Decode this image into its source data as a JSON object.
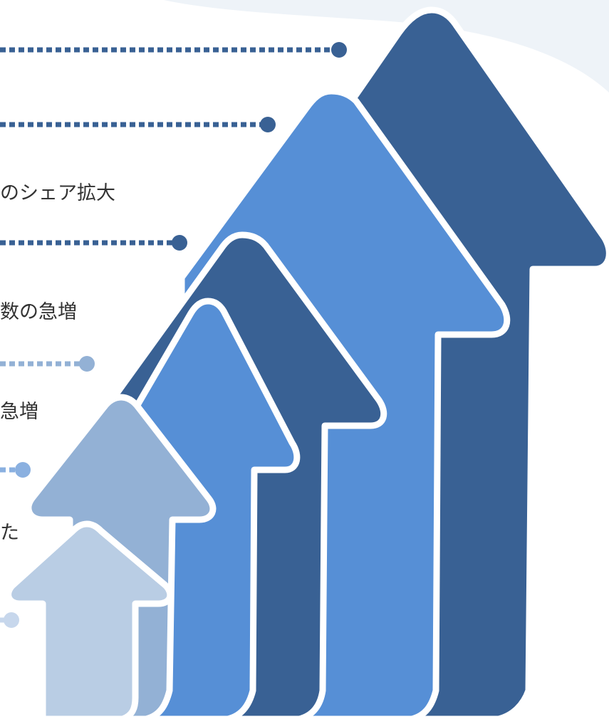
{
  "colors": {
    "navy": "#396194",
    "blue": "#568fd6",
    "steel": "#93b1d5",
    "pale": "#b9cde4",
    "outline": "#ffffff",
    "text": "#333333",
    "background_sheen": "#eef3f8"
  },
  "timeline": {
    "labels": [
      {
        "text": "のシェア拡大"
      },
      {
        "text": "数の急増"
      },
      {
        "text": "急増"
      },
      {
        "text": "た"
      }
    ]
  },
  "connectors": [
    {
      "style": "dotted",
      "color": "#396194"
    },
    {
      "style": "dotted",
      "color": "#396194"
    },
    {
      "style": "dotted",
      "color": "#396194"
    },
    {
      "style": "dotted",
      "color": "#93b1d5"
    },
    {
      "style": "dotted",
      "color": "#8ab0e0"
    },
    {
      "style": "dotted",
      "color": "#c7d7ec"
    }
  ],
  "arrows": [
    {
      "color": "#396194",
      "level": 1
    },
    {
      "color": "#568fd6",
      "level": 2
    },
    {
      "color": "#396194",
      "level": 3
    },
    {
      "color": "#568fd6",
      "level": 4
    },
    {
      "color": "#93b1d5",
      "level": 5
    },
    {
      "color": "#b9cde4",
      "level": 6
    }
  ]
}
